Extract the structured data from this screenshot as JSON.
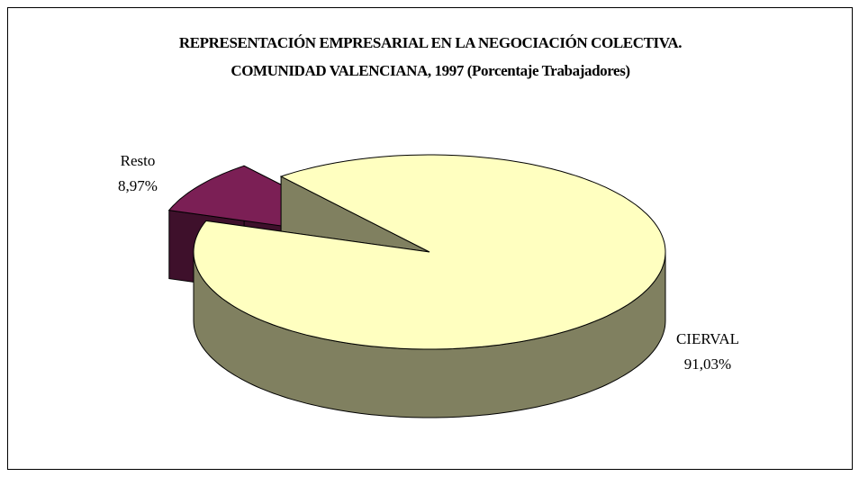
{
  "chart_data": {
    "type": "pie",
    "title": [
      "REPRESENTACIÓN EMPRESARIAL EN LA NEGOCIACIÓN COLECTIVA.",
      "COMUNIDAD VALENCIANA, 1997 (Porcentaje Trabajadores)"
    ],
    "categories": [
      "CIERVAL",
      "Resto"
    ],
    "values": [
      91.03,
      8.97
    ],
    "value_labels": [
      "91,03%",
      "8,97%"
    ],
    "colors": [
      "#ffffc0",
      "#7b1f55"
    ]
  }
}
